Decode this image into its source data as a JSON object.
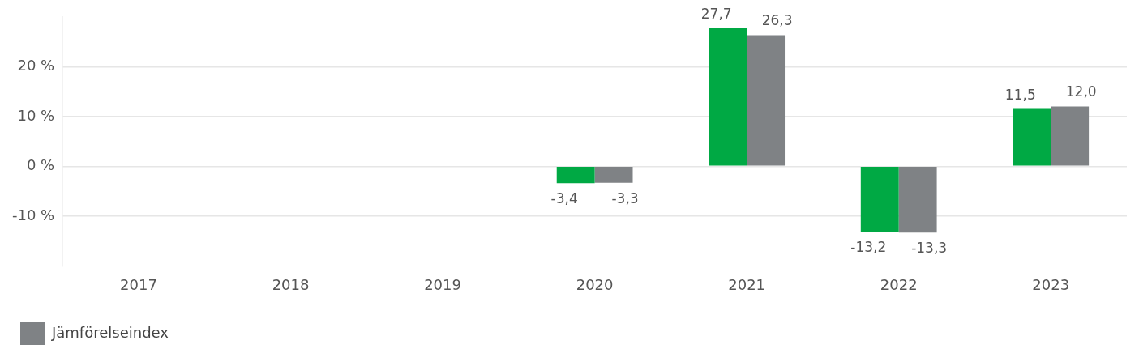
{
  "chart_data": {
    "type": "bar",
    "categories": [
      "2017",
      "2018",
      "2019",
      "2020",
      "2021",
      "2022",
      "2023"
    ],
    "series": [
      {
        "color": "#00a944",
        "values": [
          null,
          null,
          null,
          -3.4,
          27.7,
          -13.2,
          11.5
        ],
        "value_labels": [
          null,
          null,
          null,
          "-3,4",
          "27,7",
          "-13,2",
          "11,5"
        ]
      },
      {
        "name": "Jämförelseindex",
        "color": "#7f8285",
        "values": [
          null,
          null,
          null,
          -3.3,
          26.3,
          -13.3,
          12.0
        ],
        "value_labels": [
          null,
          null,
          null,
          "-3,3",
          "26,3",
          "-13,3",
          "12,0"
        ]
      }
    ],
    "ylim": [
      -20,
      30
    ],
    "yticks": [
      {
        "value": -10,
        "label": "-10 %"
      },
      {
        "value": 0,
        "label": "0 %"
      },
      {
        "value": 10,
        "label": "10 %"
      },
      {
        "value": 20,
        "label": "20 %"
      }
    ],
    "grid": "y",
    "legend": "bottom left"
  }
}
